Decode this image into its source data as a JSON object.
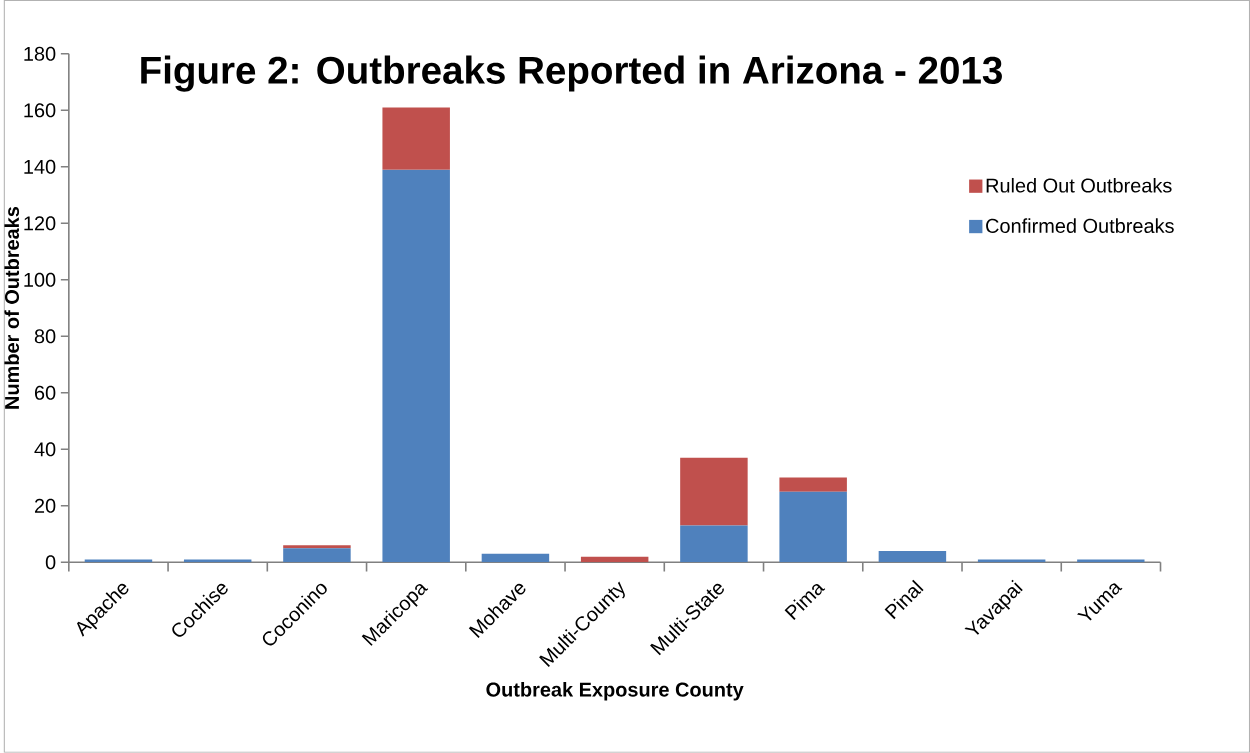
{
  "chart_data": {
    "type": "bar",
    "title": "Figure 2: Outbreaks Reported in Arizona - 2013",
    "xlabel": "Outbreak Exposure County",
    "ylabel": "Number of Outbreaks",
    "categories": [
      "Apache",
      "Cochise",
      "Coconino",
      "Maricopa",
      "Mohave",
      "Multi-County",
      "Multi-State",
      "Pima",
      "Pinal",
      "Yavapai",
      "Yuma"
    ],
    "series": [
      {
        "name": "Confirmed Outbreaks",
        "color": "#4f81bd",
        "values": [
          1,
          1,
          5,
          139,
          3,
          0,
          13,
          25,
          4,
          1,
          1
        ]
      },
      {
        "name": "Ruled Out Outbreaks",
        "color": "#c0504d",
        "values": [
          0,
          0,
          1,
          22,
          0,
          2,
          24,
          5,
          0,
          0,
          0
        ]
      }
    ],
    "stacked": true,
    "ylim": [
      0,
      180
    ],
    "yticks": [
      0,
      20,
      40,
      60,
      80,
      100,
      120,
      140,
      160,
      180
    ],
    "grid": false,
    "legend": "right"
  }
}
